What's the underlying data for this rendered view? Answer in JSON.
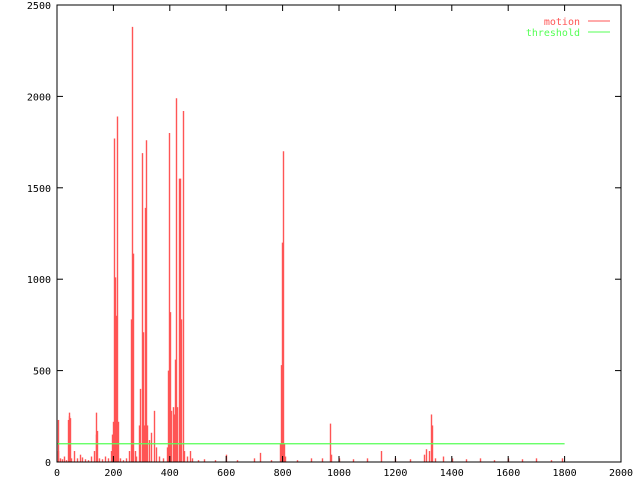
{
  "chart_data": {
    "type": "bar",
    "style": "impulses",
    "title": "",
    "xlabel": "",
    "ylabel": "",
    "xlim": [
      0,
      2000
    ],
    "ylim": [
      0,
      2500
    ],
    "xticks": [
      0,
      200,
      400,
      600,
      800,
      1000,
      1200,
      1400,
      1600,
      1800,
      2000
    ],
    "yticks": [
      0,
      500,
      1000,
      1500,
      2000,
      2500
    ],
    "grid": false,
    "legend_position": "top-right",
    "series": [
      {
        "name": "motion",
        "color": "#ff5555",
        "points": [
          [
            2,
            230
          ],
          [
            5,
            60
          ],
          [
            10,
            20
          ],
          [
            18,
            15
          ],
          [
            25,
            30
          ],
          [
            32,
            10
          ],
          [
            40,
            230
          ],
          [
            42,
            270
          ],
          [
            44,
            250
          ],
          [
            46,
            240
          ],
          [
            50,
            20
          ],
          [
            60,
            60
          ],
          [
            70,
            20
          ],
          [
            80,
            40
          ],
          [
            90,
            25
          ],
          [
            100,
            15
          ],
          [
            110,
            10
          ],
          [
            120,
            30
          ],
          [
            130,
            60
          ],
          [
            138,
            150
          ],
          [
            140,
            270
          ],
          [
            142,
            170
          ],
          [
            150,
            20
          ],
          [
            160,
            15
          ],
          [
            170,
            30
          ],
          [
            180,
            20
          ],
          [
            190,
            60
          ],
          [
            196,
            150
          ],
          [
            200,
            220
          ],
          [
            202,
            1770
          ],
          [
            206,
            1010
          ],
          [
            210,
            800
          ],
          [
            213,
            1890
          ],
          [
            216,
            220
          ],
          [
            225,
            20
          ],
          [
            235,
            10
          ],
          [
            245,
            20
          ],
          [
            255,
            60
          ],
          [
            262,
            780
          ],
          [
            266,
            2380
          ],
          [
            270,
            1140
          ],
          [
            275,
            60
          ],
          [
            280,
            30
          ],
          [
            290,
            200
          ],
          [
            296,
            400
          ],
          [
            301,
            1690
          ],
          [
            305,
            710
          ],
          [
            309,
            200
          ],
          [
            312,
            1390
          ],
          [
            316,
            1760
          ],
          [
            320,
            200
          ],
          [
            326,
            120
          ],
          [
            333,
            160
          ],
          [
            344,
            280
          ],
          [
            350,
            80
          ],
          [
            360,
            30
          ],
          [
            375,
            20
          ],
          [
            390,
            80
          ],
          [
            394,
            500
          ],
          [
            397,
            1800
          ],
          [
            401,
            820
          ],
          [
            405,
            280
          ],
          [
            410,
            300
          ],
          [
            414,
            260
          ],
          [
            418,
            560
          ],
          [
            422,
            1990
          ],
          [
            426,
            300
          ],
          [
            432,
            1550
          ],
          [
            436,
            1550
          ],
          [
            440,
            780
          ],
          [
            447,
            1920
          ],
          [
            452,
            60
          ],
          [
            460,
            30
          ],
          [
            470,
            60
          ],
          [
            480,
            20
          ],
          [
            500,
            10
          ],
          [
            520,
            15
          ],
          [
            560,
            10
          ],
          [
            600,
            40
          ],
          [
            640,
            10
          ],
          [
            700,
            20
          ],
          [
            720,
            50
          ],
          [
            760,
            10
          ],
          [
            790,
            100
          ],
          [
            794,
            530
          ],
          [
            797,
            1200
          ],
          [
            801,
            1700
          ],
          [
            805,
            100
          ],
          [
            810,
            30
          ],
          [
            850,
            10
          ],
          [
            900,
            20
          ],
          [
            940,
            20
          ],
          [
            968,
            210
          ],
          [
            972,
            40
          ],
          [
            1000,
            20
          ],
          [
            1050,
            15
          ],
          [
            1100,
            20
          ],
          [
            1150,
            60
          ],
          [
            1200,
            20
          ],
          [
            1250,
            15
          ],
          [
            1300,
            40
          ],
          [
            1310,
            70
          ],
          [
            1320,
            60
          ],
          [
            1326,
            260
          ],
          [
            1330,
            200
          ],
          [
            1340,
            20
          ],
          [
            1370,
            30
          ],
          [
            1400,
            20
          ],
          [
            1450,
            15
          ],
          [
            1500,
            20
          ],
          [
            1550,
            10
          ],
          [
            1600,
            20
          ],
          [
            1650,
            15
          ],
          [
            1700,
            20
          ],
          [
            1750,
            10
          ],
          [
            1790,
            20
          ]
        ]
      },
      {
        "name": "threshold",
        "color": "#55ff55",
        "points": [
          [
            0,
            100
          ],
          [
            1800,
            100
          ]
        ]
      }
    ]
  }
}
